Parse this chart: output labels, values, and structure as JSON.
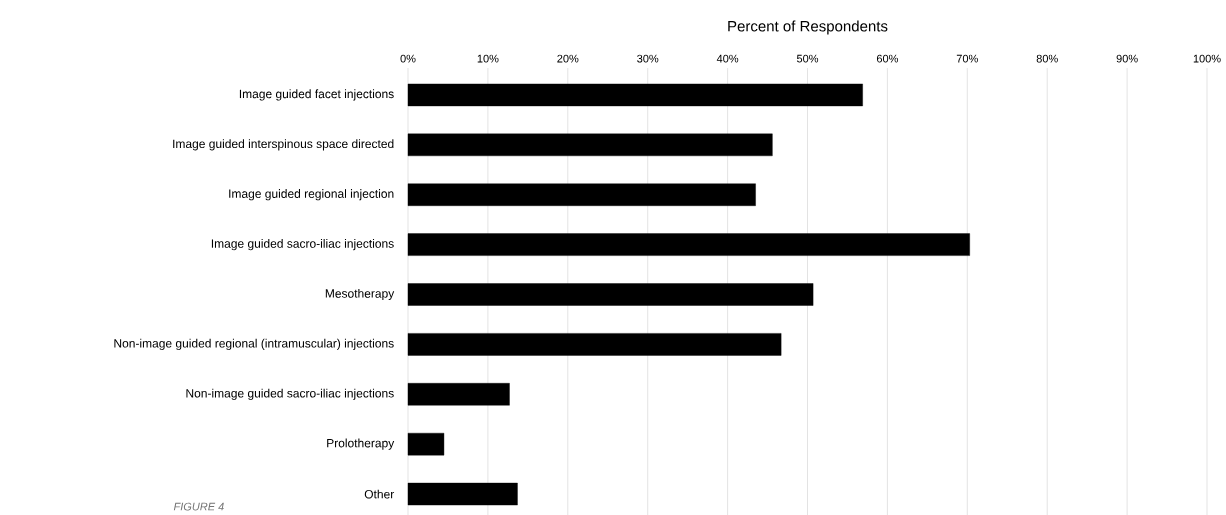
{
  "chart_data": {
    "type": "bar",
    "orientation": "horizontal",
    "xlabel": "Percent of Respondents",
    "categories": [
      "Image guided facet injections",
      "Image guided interspinous space directed",
      "Image guided regional injection",
      "Image guided sacro-iliac injections",
      "Mesotherapy",
      "Non-image guided regional (intramuscular) injections",
      "Non-image guided sacro-iliac injections",
      "Prolotherapy",
      "Other"
    ],
    "values": [
      56.9,
      45.6,
      43.5,
      70.3,
      50.7,
      46.7,
      12.7,
      4.5,
      13.7
    ],
    "color": "#000000",
    "xlim": [
      0,
      100
    ],
    "xticks": [
      {
        "value": 0,
        "label": "0%"
      },
      {
        "value": 10,
        "label": "10%"
      },
      {
        "value": 20,
        "label": "20%"
      },
      {
        "value": 30,
        "label": "30%"
      },
      {
        "value": 40,
        "label": "40%"
      },
      {
        "value": 50,
        "label": "50%"
      },
      {
        "value": 60,
        "label": "60%"
      },
      {
        "value": 70,
        "label": "70%"
      },
      {
        "value": 80,
        "label": "80%"
      },
      {
        "value": 90,
        "label": "90%"
      },
      {
        "value": 100,
        "label": "100%"
      }
    ],
    "grid": "x",
    "annotations": [
      "FIGURE 4"
    ]
  }
}
